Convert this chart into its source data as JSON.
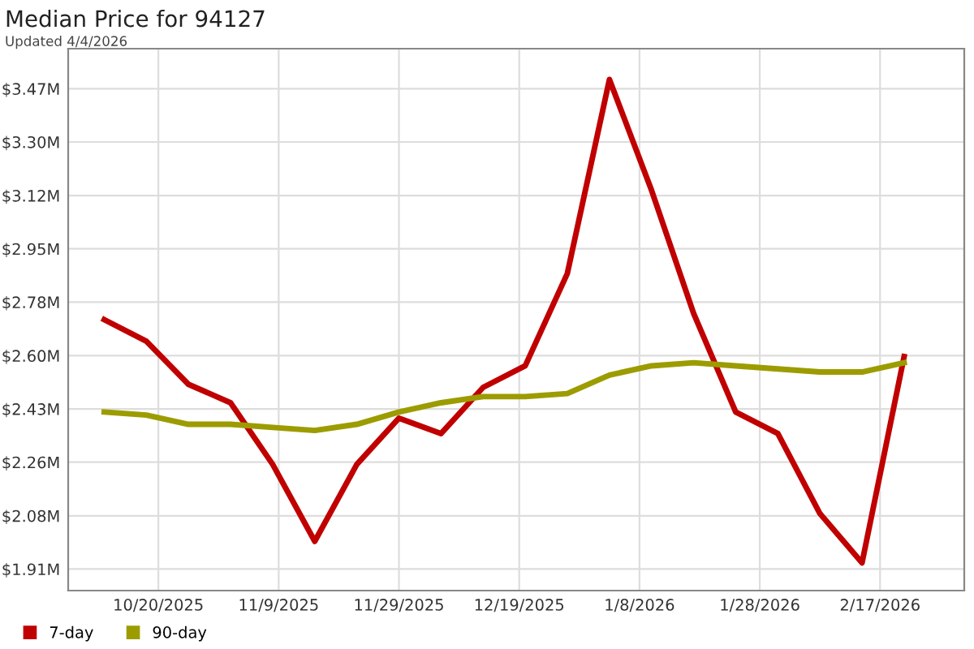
{
  "chart_data": {
    "type": "line",
    "title": "Median Price for 94127",
    "subtitle": "Updated 4/4/2026",
    "x": [
      "2025-10-11",
      "2025-10-18",
      "2025-10-25",
      "2025-11-01",
      "2025-11-08",
      "2025-11-15",
      "2025-11-22",
      "2025-11-29",
      "2025-12-06",
      "2025-12-13",
      "2025-12-20",
      "2025-12-27",
      "2026-01-03",
      "2026-01-10",
      "2026-01-17",
      "2026-01-24",
      "2026-01-31",
      "2026-02-07",
      "2026-02-14",
      "2026-02-21"
    ],
    "series": [
      {
        "name": "7-day",
        "color": "#c00000",
        "values": [
          2.72,
          2.65,
          2.51,
          2.45,
          2.25,
          2.0,
          2.25,
          2.4,
          2.35,
          2.5,
          2.57,
          2.87,
          3.5,
          3.14,
          2.74,
          2.42,
          2.35,
          2.09,
          1.93,
          2.6
        ]
      },
      {
        "name": "90-day",
        "color": "#9c9c00",
        "values": [
          2.42,
          2.41,
          2.38,
          2.38,
          2.37,
          2.36,
          2.38,
          2.42,
          2.45,
          2.47,
          2.47,
          2.48,
          2.54,
          2.57,
          2.58,
          2.57,
          2.56,
          2.55,
          2.55,
          2.58
        ]
      }
    ],
    "xlim": [
      "2025-10-05",
      "2026-03-03"
    ],
    "xticks": [
      {
        "value": "2025-10-20",
        "label": "10/20/2025"
      },
      {
        "value": "2025-11-09",
        "label": "11/9/2025"
      },
      {
        "value": "2025-11-29",
        "label": "11/29/2025"
      },
      {
        "value": "2025-12-19",
        "label": "12/19/2025"
      },
      {
        "value": "2026-01-08",
        "label": "1/8/2026"
      },
      {
        "value": "2026-01-28",
        "label": "1/28/2026"
      },
      {
        "value": "2026-02-17",
        "label": "2/17/2026"
      }
    ],
    "ylim": [
      1.84,
      3.6
    ],
    "yticks": [
      {
        "value": 1.91,
        "label": "$1.91M"
      },
      {
        "value": 2.083,
        "label": "$2.08M"
      },
      {
        "value": 2.257,
        "label": "$2.26M"
      },
      {
        "value": 2.43,
        "label": "$2.43M"
      },
      {
        "value": 2.603,
        "label": "$2.60M"
      },
      {
        "value": 2.777,
        "label": "$2.78M"
      },
      {
        "value": 2.95,
        "label": "$2.95M"
      },
      {
        "value": 3.123,
        "label": "$3.12M"
      },
      {
        "value": 3.297,
        "label": "$3.30M"
      },
      {
        "value": 3.47,
        "label": "$3.47M"
      }
    ],
    "grid": true,
    "legend": "bottom left",
    "marker": "none",
    "line_style": "solid"
  }
}
